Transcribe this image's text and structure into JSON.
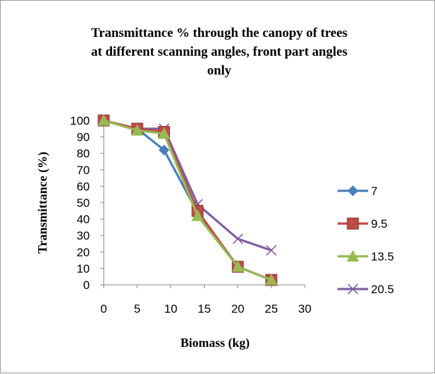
{
  "chart_data": {
    "type": "line",
    "title": "Transmittance % through the canopy of trees at different scanning angles, front part angles only",
    "title_lines": [
      "Transmittance % through the canopy of trees",
      "at different scanning angles, front part angles",
      "only"
    ],
    "xlabel": "Biomass (kg)",
    "ylabel": "Transmittance (%)",
    "xlim": [
      0,
      30
    ],
    "ylim": [
      0,
      100
    ],
    "xticks": [
      0,
      5,
      10,
      15,
      20,
      25,
      30
    ],
    "yticks": [
      0,
      10,
      20,
      30,
      40,
      50,
      60,
      70,
      80,
      90,
      100
    ],
    "grid": false,
    "legend_position": "right",
    "series": [
      {
        "name": "7",
        "color": "#4a7ebb",
        "marker": "diamond",
        "x": [
          0,
          5,
          9,
          14,
          20,
          25
        ],
        "y": [
          100,
          95,
          82,
          44,
          11,
          3
        ]
      },
      {
        "name": "9.5",
        "color": "#be4b48",
        "marker": "square",
        "x": [
          0,
          5,
          9,
          14,
          20,
          25
        ],
        "y": [
          100,
          95,
          93,
          45,
          11,
          3
        ]
      },
      {
        "name": "13.5",
        "color": "#98b954",
        "marker": "triangle",
        "x": [
          0,
          5,
          9,
          14,
          20,
          25
        ],
        "y": [
          100,
          94,
          92,
          42,
          11,
          3
        ]
      },
      {
        "name": "20.5",
        "color": "#7d5fa0",
        "marker": "x",
        "x": [
          0,
          5,
          9,
          14,
          20,
          25
        ],
        "y": [
          100,
          95,
          95,
          49,
          28,
          21
        ]
      }
    ]
  }
}
